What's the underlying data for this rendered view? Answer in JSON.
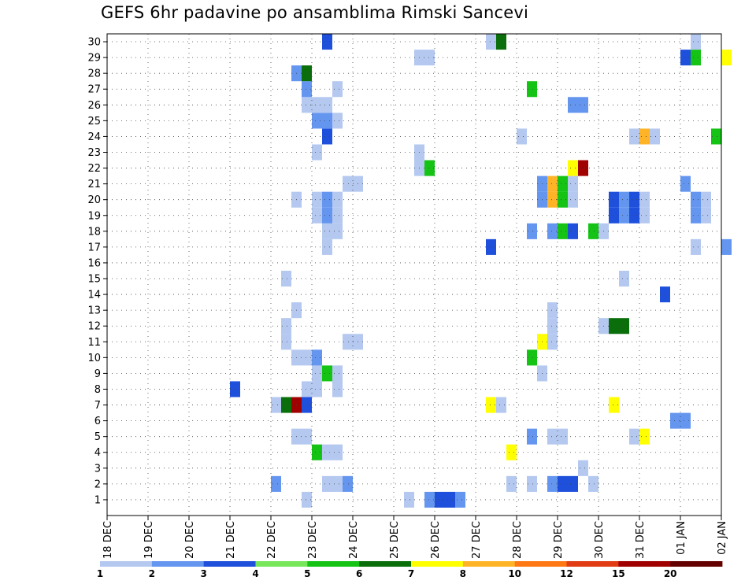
{
  "chart_data": {
    "type": "heatmap",
    "title": "GEFS 6hr padavine po ansamblima Rimski Sancevi",
    "xlabel": "",
    "ylabel": "",
    "y_members": [
      1,
      2,
      3,
      4,
      5,
      6,
      7,
      8,
      9,
      10,
      11,
      12,
      13,
      14,
      15,
      16,
      17,
      18,
      19,
      20,
      21,
      22,
      23,
      24,
      25,
      26,
      27,
      28,
      29,
      30
    ],
    "x_tick_labels": [
      "18 DEC",
      "19 DEC",
      "20 DEC",
      "21 DEC",
      "22 DEC",
      "23 DEC",
      "24 DEC",
      "25 DEC",
      "26 DEC",
      "27 DEC",
      "28 DEC",
      "29 DEC",
      "30 DEC",
      "31 DEC",
      "01 JAN",
      "02 JAN"
    ],
    "x_range_days": [
      0,
      15
    ],
    "step_hours": 6,
    "grid": true,
    "colorbar": {
      "boundaries": [
        "1",
        "2",
        "3",
        "4",
        "5",
        "6",
        "7",
        "8",
        "10",
        "12",
        "15",
        "20"
      ],
      "colors": [
        "#b4c8f0",
        "#6496f0",
        "#1e50dc",
        "#78e65a",
        "#14c314",
        "#0a6e0a",
        "#ffff00",
        "#ffb428",
        "#ff7814",
        "#e13c14",
        "#a00000",
        "#640000"
      ]
    },
    "cells": [
      {
        "m": 1,
        "t": 19,
        "c": 0
      },
      {
        "m": 1,
        "t": 29,
        "c": 0
      },
      {
        "m": 1,
        "t": 31,
        "c": 1
      },
      {
        "m": 1,
        "t": 32,
        "c": 2
      },
      {
        "m": 1,
        "t": 33,
        "c": 2
      },
      {
        "m": 1,
        "t": 34,
        "c": 1
      },
      {
        "m": 2,
        "t": 16,
        "c": 1
      },
      {
        "m": 2,
        "t": 21,
        "c": 0
      },
      {
        "m": 2,
        "t": 22,
        "c": 0
      },
      {
        "m": 2,
        "t": 23,
        "c": 1
      },
      {
        "m": 2,
        "t": 39,
        "c": 0
      },
      {
        "m": 2,
        "t": 41,
        "c": 0
      },
      {
        "m": 2,
        "t": 43,
        "c": 1
      },
      {
        "m": 2,
        "t": 44,
        "c": 2
      },
      {
        "m": 2,
        "t": 45,
        "c": 2
      },
      {
        "m": 2,
        "t": 47,
        "c": 0
      },
      {
        "m": 3,
        "t": 46,
        "c": 0
      },
      {
        "m": 4,
        "t": 20,
        "c": 4
      },
      {
        "m": 4,
        "t": 21,
        "c": 0
      },
      {
        "m": 4,
        "t": 22,
        "c": 0
      },
      {
        "m": 4,
        "t": 39,
        "c": 6
      },
      {
        "m": 5,
        "t": 18,
        "c": 0
      },
      {
        "m": 5,
        "t": 19,
        "c": 0
      },
      {
        "m": 5,
        "t": 41,
        "c": 1
      },
      {
        "m": 5,
        "t": 43,
        "c": 0
      },
      {
        "m": 5,
        "t": 44,
        "c": 0
      },
      {
        "m": 5,
        "t": 51,
        "c": 0
      },
      {
        "m": 5,
        "t": 52,
        "c": 6
      },
      {
        "m": 6,
        "t": 55,
        "c": 1
      },
      {
        "m": 6,
        "t": 56,
        "c": 1
      },
      {
        "m": 7,
        "t": 16,
        "c": 0
      },
      {
        "m": 7,
        "t": 17,
        "c": 5
      },
      {
        "m": 7,
        "t": 18,
        "c": 10
      },
      {
        "m": 7,
        "t": 19,
        "c": 2
      },
      {
        "m": 7,
        "t": 37,
        "c": 6
      },
      {
        "m": 7,
        "t": 38,
        "c": 0
      },
      {
        "m": 7,
        "t": 49,
        "c": 6
      },
      {
        "m": 8,
        "t": 12,
        "c": 2
      },
      {
        "m": 8,
        "t": 19,
        "c": 0
      },
      {
        "m": 8,
        "t": 20,
        "c": 0
      },
      {
        "m": 8,
        "t": 22,
        "c": 0
      },
      {
        "m": 9,
        "t": 20,
        "c": 0
      },
      {
        "m": 9,
        "t": 21,
        "c": 4
      },
      {
        "m": 9,
        "t": 22,
        "c": 0
      },
      {
        "m": 9,
        "t": 42,
        "c": 0
      },
      {
        "m": 10,
        "t": 18,
        "c": 0
      },
      {
        "m": 10,
        "t": 19,
        "c": 0
      },
      {
        "m": 10,
        "t": 20,
        "c": 1
      },
      {
        "m": 10,
        "t": 41,
        "c": 4
      },
      {
        "m": 11,
        "t": 17,
        "c": 0
      },
      {
        "m": 11,
        "t": 23,
        "c": 0
      },
      {
        "m": 11,
        "t": 24,
        "c": 0
      },
      {
        "m": 11,
        "t": 42,
        "c": 6
      },
      {
        "m": 11,
        "t": 43,
        "c": 0
      },
      {
        "m": 12,
        "t": 17,
        "c": 0
      },
      {
        "m": 12,
        "t": 43,
        "c": 0
      },
      {
        "m": 12,
        "t": 48,
        "c": 0
      },
      {
        "m": 12,
        "t": 49,
        "c": 5
      },
      {
        "m": 12,
        "t": 50,
        "c": 5
      },
      {
        "m": 13,
        "t": 18,
        "c": 0
      },
      {
        "m": 13,
        "t": 43,
        "c": 0
      },
      {
        "m": 14,
        "t": 54,
        "c": 2
      },
      {
        "m": 15,
        "t": 17,
        "c": 0
      },
      {
        "m": 15,
        "t": 50,
        "c": 0
      },
      {
        "m": 17,
        "t": 21,
        "c": 0
      },
      {
        "m": 17,
        "t": 37,
        "c": 2
      },
      {
        "m": 17,
        "t": 57,
        "c": 0
      },
      {
        "m": 17,
        "t": 60,
        "c": 1
      },
      {
        "m": 18,
        "t": 21,
        "c": 0
      },
      {
        "m": 18,
        "t": 22,
        "c": 0
      },
      {
        "m": 18,
        "t": 41,
        "c": 1
      },
      {
        "m": 18,
        "t": 43,
        "c": 1
      },
      {
        "m": 18,
        "t": 44,
        "c": 4
      },
      {
        "m": 18,
        "t": 45,
        "c": 2
      },
      {
        "m": 18,
        "t": 47,
        "c": 4
      },
      {
        "m": 18,
        "t": 48,
        "c": 0
      },
      {
        "m": 19,
        "t": 20,
        "c": 0
      },
      {
        "m": 19,
        "t": 21,
        "c": 1
      },
      {
        "m": 19,
        "t": 22,
        "c": 0
      },
      {
        "m": 19,
        "t": 49,
        "c": 2
      },
      {
        "m": 19,
        "t": 50,
        "c": 1
      },
      {
        "m": 19,
        "t": 51,
        "c": 2
      },
      {
        "m": 19,
        "t": 52,
        "c": 0
      },
      {
        "m": 19,
        "t": 57,
        "c": 1
      },
      {
        "m": 19,
        "t": 58,
        "c": 0
      },
      {
        "m": 20,
        "t": 18,
        "c": 0
      },
      {
        "m": 20,
        "t": 20,
        "c": 0
      },
      {
        "m": 20,
        "t": 21,
        "c": 1
      },
      {
        "m": 20,
        "t": 22,
        "c": 0
      },
      {
        "m": 20,
        "t": 42,
        "c": 1
      },
      {
        "m": 20,
        "t": 43,
        "c": 7
      },
      {
        "m": 20,
        "t": 44,
        "c": 4
      },
      {
        "m": 20,
        "t": 45,
        "c": 0
      },
      {
        "m": 20,
        "t": 49,
        "c": 2
      },
      {
        "m": 20,
        "t": 50,
        "c": 1
      },
      {
        "m": 20,
        "t": 51,
        "c": 2
      },
      {
        "m": 20,
        "t": 52,
        "c": 0
      },
      {
        "m": 20,
        "t": 57,
        "c": 1
      },
      {
        "m": 20,
        "t": 58,
        "c": 0
      },
      {
        "m": 21,
        "t": 23,
        "c": 0
      },
      {
        "m": 21,
        "t": 24,
        "c": 0
      },
      {
        "m": 21,
        "t": 42,
        "c": 1
      },
      {
        "m": 21,
        "t": 43,
        "c": 7
      },
      {
        "m": 21,
        "t": 44,
        "c": 4
      },
      {
        "m": 21,
        "t": 45,
        "c": 0
      },
      {
        "m": 21,
        "t": 56,
        "c": 1
      },
      {
        "m": 22,
        "t": 30,
        "c": 0
      },
      {
        "m": 22,
        "t": 31,
        "c": 4
      },
      {
        "m": 22,
        "t": 45,
        "c": 6
      },
      {
        "m": 22,
        "t": 46,
        "c": 10
      },
      {
        "m": 23,
        "t": 20,
        "c": 0
      },
      {
        "m": 23,
        "t": 30,
        "c": 0
      },
      {
        "m": 24,
        "t": 21,
        "c": 2
      },
      {
        "m": 24,
        "t": 40,
        "c": 0
      },
      {
        "m": 24,
        "t": 51,
        "c": 0
      },
      {
        "m": 24,
        "t": 52,
        "c": 7
      },
      {
        "m": 24,
        "t": 53,
        "c": 0
      },
      {
        "m": 24,
        "t": 59,
        "c": 4
      },
      {
        "m": 25,
        "t": 20,
        "c": 1
      },
      {
        "m": 25,
        "t": 21,
        "c": 1
      },
      {
        "m": 25,
        "t": 22,
        "c": 0
      },
      {
        "m": 26,
        "t": 19,
        "c": 0
      },
      {
        "m": 26,
        "t": 20,
        "c": 0
      },
      {
        "m": 26,
        "t": 21,
        "c": 0
      },
      {
        "m": 26,
        "t": 45,
        "c": 1
      },
      {
        "m": 26,
        "t": 46,
        "c": 1
      },
      {
        "m": 27,
        "t": 19,
        "c": 1
      },
      {
        "m": 27,
        "t": 22,
        "c": 0
      },
      {
        "m": 27,
        "t": 41,
        "c": 4
      },
      {
        "m": 28,
        "t": 18,
        "c": 1
      },
      {
        "m": 28,
        "t": 19,
        "c": 5
      },
      {
        "m": 29,
        "t": 30,
        "c": 0
      },
      {
        "m": 29,
        "t": 31,
        "c": 0
      },
      {
        "m": 29,
        "t": 56,
        "c": 2
      },
      {
        "m": 29,
        "t": 57,
        "c": 4
      },
      {
        "m": 29,
        "t": 60,
        "c": 6
      },
      {
        "m": 30,
        "t": 21,
        "c": 2
      },
      {
        "m": 30,
        "t": 37,
        "c": 0
      },
      {
        "m": 30,
        "t": 38,
        "c": 5
      },
      {
        "m": 30,
        "t": 57,
        "c": 0
      }
    ]
  }
}
